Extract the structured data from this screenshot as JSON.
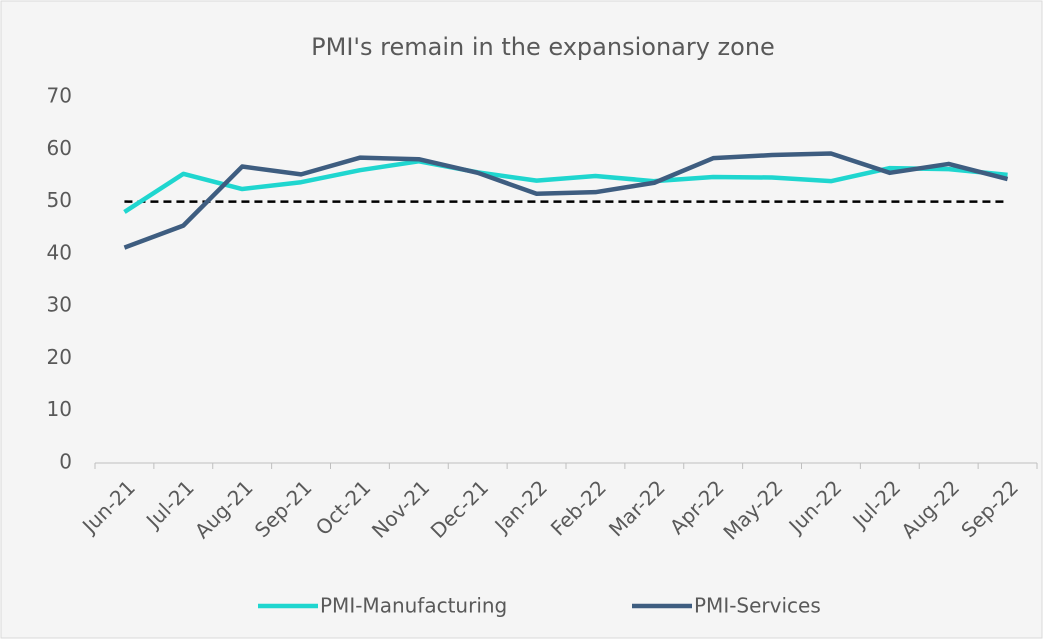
{
  "chart_data": {
    "type": "line",
    "title": "PMI's remain in the expansionary zone",
    "categories": [
      "Jun-21",
      "Jul-21",
      "Aug-21",
      "Sep-21",
      "Oct-21",
      "Nov-21",
      "Dec-21",
      "Jan-22",
      "Feb-22",
      "Mar-22",
      "Apr-22",
      "May-22",
      "Jun-22",
      "Jul-22",
      "Aug-22",
      "Sep-22"
    ],
    "series": [
      {
        "name": "PMI-Manufacturing",
        "color": "#1fd6cf",
        "values": [
          48.0,
          55.3,
          52.4,
          53.7,
          56.0,
          57.7,
          55.6,
          54.0,
          54.9,
          53.9,
          54.7,
          54.6,
          53.9,
          56.4,
          56.2,
          55.1
        ]
      },
      {
        "name": "PMI-Services",
        "color": "#3e5d80",
        "values": [
          41.2,
          45.4,
          56.7,
          55.2,
          58.4,
          58.1,
          55.5,
          51.5,
          51.8,
          53.6,
          58.3,
          58.9,
          59.2,
          55.5,
          57.2,
          54.3
        ]
      }
    ],
    "reference_line": 50,
    "ylim": [
      0,
      70
    ],
    "yticks": [
      0,
      10,
      20,
      30,
      40,
      50,
      60,
      70
    ],
    "grid": false,
    "legend": "bottom"
  }
}
